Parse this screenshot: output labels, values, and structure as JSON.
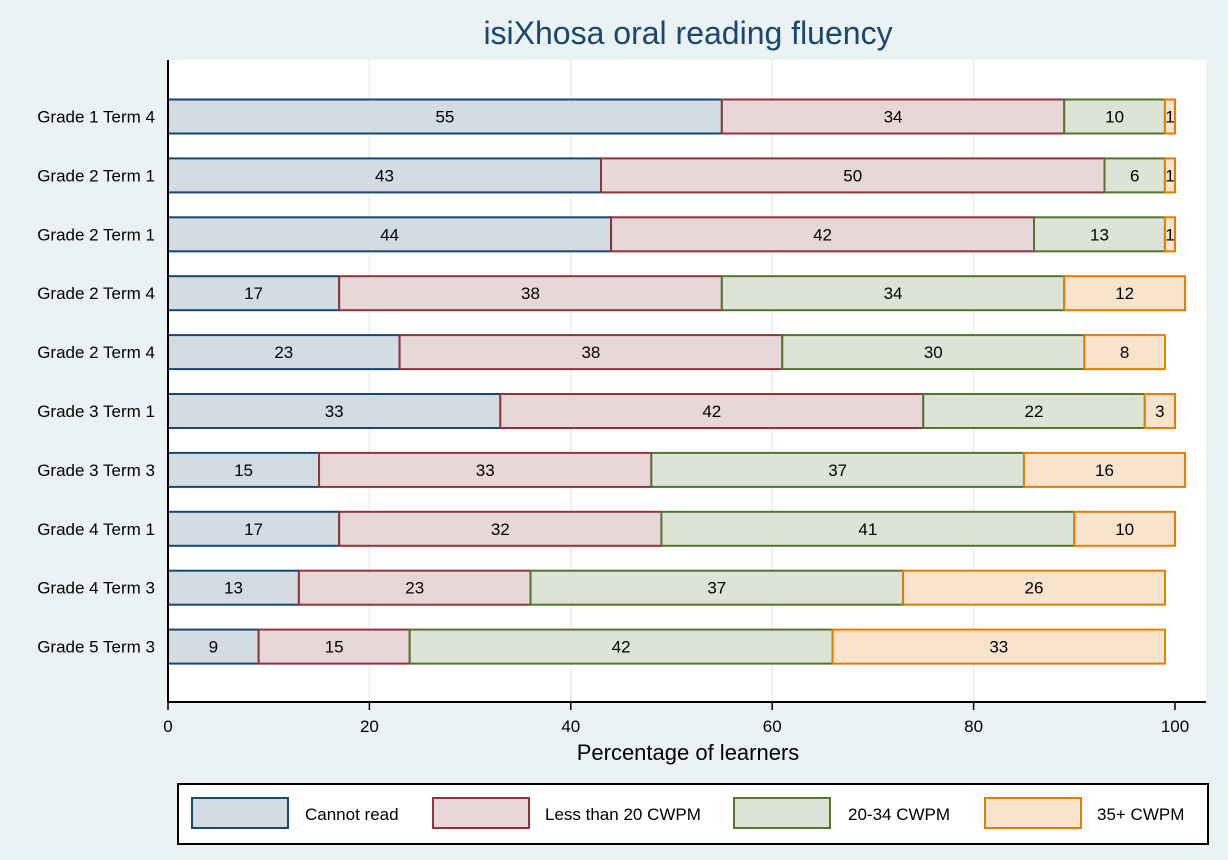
{
  "chart_data": {
    "type": "bar",
    "orientation": "horizontal",
    "stacked": true,
    "title": "isiXhosa oral reading fluency",
    "xlabel": "Percentage of learners",
    "ylabel": "",
    "xlim": [
      0,
      100
    ],
    "xticks": [
      0,
      20,
      40,
      60,
      80,
      100
    ],
    "grid": true,
    "legend_position": "bottom",
    "categories": [
      "Grade 1 Term 4",
      "Grade 2 Term 1",
      "Grade 2 Term 1",
      "Grade 2 Term 4",
      "Grade 2 Term 4",
      "Grade 3 Term 1",
      "Grade 3 Term 3",
      "Grade 4 Term 1",
      "Grade 4 Term 3",
      "Grade 5 Term 3"
    ],
    "series": [
      {
        "name": "Cannot read",
        "fill": "#d3dbe3",
        "stroke": "#1a476f",
        "values": [
          55,
          43,
          44,
          17,
          23,
          33,
          15,
          17,
          13,
          9
        ]
      },
      {
        "name": "Less than 20 CWPM",
        "fill": "#e8d7d8",
        "stroke": "#90353b",
        "values": [
          34,
          50,
          42,
          38,
          38,
          42,
          33,
          32,
          23,
          15
        ]
      },
      {
        "name": "20-34 CWPM",
        "fill": "#dde3d6",
        "stroke": "#55752f",
        "values": [
          10,
          6,
          13,
          34,
          30,
          22,
          37,
          41,
          37,
          42
        ]
      },
      {
        "name": "35+ CWPM",
        "fill": "#f8e4cc",
        "stroke": "#e37e00",
        "values": [
          1,
          1,
          1,
          12,
          8,
          3,
          16,
          10,
          26,
          33
        ]
      }
    ]
  }
}
